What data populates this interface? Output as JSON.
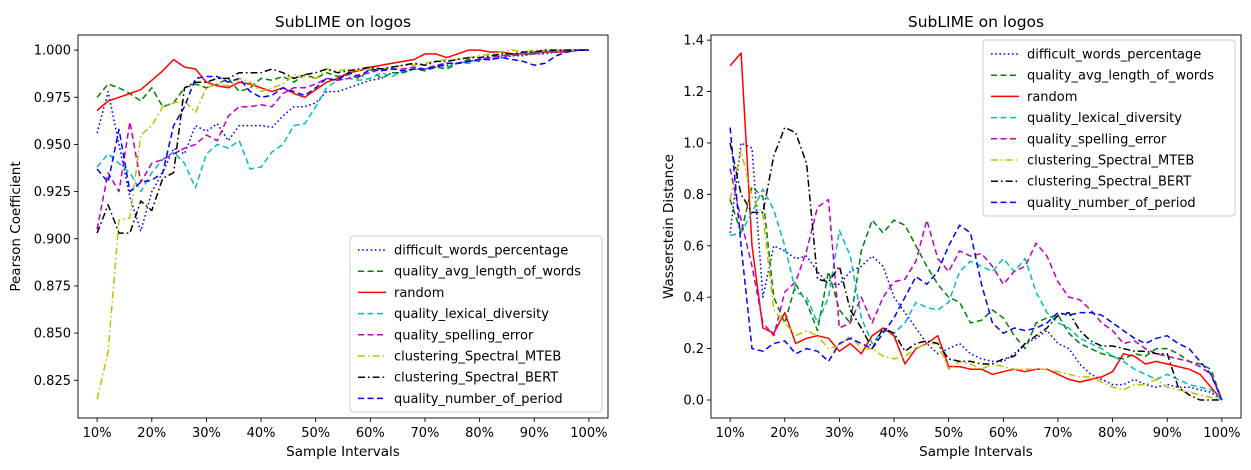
{
  "chart_data": [
    {
      "type": "line",
      "title": "SubLIME on logos",
      "xlabel": "Sample Intervals",
      "ylabel": "Pearson Coefficient",
      "x": [
        10,
        12,
        14,
        16,
        18,
        20,
        22,
        24,
        26,
        28,
        30,
        32,
        34,
        36,
        38,
        40,
        42,
        44,
        46,
        48,
        50,
        52,
        54,
        56,
        58,
        60,
        62,
        64,
        66,
        68,
        70,
        72,
        74,
        76,
        78,
        80,
        82,
        84,
        86,
        88,
        90,
        92,
        94,
        96,
        98,
        100
      ],
      "x_ticks": [
        10,
        20,
        30,
        40,
        50,
        60,
        70,
        80,
        90,
        100
      ],
      "x_tick_labels": [
        "10%",
        "20%",
        "30%",
        "40%",
        "50%",
        "60%",
        "70%",
        "80%",
        "90%",
        "100%"
      ],
      "xlim": [
        6.5,
        103.5
      ],
      "ylim": [
        0.805,
        1.008
      ],
      "y_ticks": [
        0.825,
        0.85,
        0.875,
        0.9,
        0.925,
        0.95,
        0.975,
        1.0
      ],
      "y_tick_labels": [
        "0.825",
        "0.850",
        "0.875",
        "0.900",
        "0.925",
        "0.950",
        "0.975",
        "1.000"
      ],
      "grid": false,
      "legend_position": "bottom-right",
      "series": [
        {
          "name": "difficult_words_percentage",
          "color": "#0000ff",
          "style": "dotted",
          "values": [
            0.956,
            0.978,
            0.95,
            0.922,
            0.904,
            0.925,
            0.935,
            0.948,
            0.945,
            0.96,
            0.957,
            0.961,
            0.952,
            0.96,
            0.96,
            0.96,
            0.959,
            0.965,
            0.97,
            0.97,
            0.972,
            0.978,
            0.978,
            0.98,
            0.982,
            0.984,
            0.985,
            0.988,
            0.988,
            0.99,
            0.99,
            0.991,
            0.992,
            0.993,
            0.994,
            0.995,
            0.995,
            0.996,
            0.997,
            0.997,
            0.998,
            0.998,
            0.999,
            0.999,
            1.0,
            1.0
          ]
        },
        {
          "name": "quality_avg_length_of_words",
          "color": "#008000",
          "style": "dashed",
          "values": [
            0.975,
            0.982,
            0.98,
            0.977,
            0.973,
            0.98,
            0.97,
            0.972,
            0.98,
            0.982,
            0.98,
            0.982,
            0.985,
            0.978,
            0.98,
            0.985,
            0.984,
            0.986,
            0.983,
            0.987,
            0.985,
            0.988,
            0.986,
            0.987,
            0.985,
            0.99,
            0.985,
            0.988,
            0.988,
            0.99,
            0.989,
            0.991,
            0.99,
            0.993,
            0.995,
            0.994,
            0.997,
            0.997,
            0.998,
            0.998,
            0.999,
            0.999,
            1.0,
            1.0,
            1.0,
            1.0
          ]
        },
        {
          "name": "random",
          "color": "#ff0000",
          "style": "solid",
          "values": [
            0.968,
            0.973,
            0.975,
            0.977,
            0.979,
            0.984,
            0.989,
            0.995,
            0.991,
            0.99,
            0.983,
            0.981,
            0.98,
            0.983,
            0.982,
            0.98,
            0.978,
            0.98,
            0.977,
            0.975,
            0.979,
            0.983,
            0.985,
            0.988,
            0.989,
            0.991,
            0.992,
            0.993,
            0.994,
            0.995,
            0.998,
            0.998,
            0.996,
            0.998,
            1.0,
            1.0,
            0.999,
            0.999,
            0.998,
            0.998,
            0.998,
            0.999,
            0.999,
            0.999,
            1.0,
            1.0
          ]
        },
        {
          "name": "quality_lexical_diversity",
          "color": "#00bfbf",
          "style": "dashed",
          "values": [
            0.938,
            0.945,
            0.94,
            0.935,
            0.925,
            0.935,
            0.942,
            0.946,
            0.94,
            0.927,
            0.945,
            0.95,
            0.948,
            0.952,
            0.937,
            0.938,
            0.946,
            0.95,
            0.96,
            0.961,
            0.97,
            0.98,
            0.984,
            0.985,
            0.984,
            0.985,
            0.988,
            0.986,
            0.989,
            0.99,
            0.99,
            0.992,
            0.991,
            0.993,
            0.993,
            0.995,
            0.996,
            0.997,
            0.997,
            0.998,
            0.998,
            0.999,
            0.999,
            1.0,
            1.0,
            1.0
          ]
        },
        {
          "name": "quality_spelling_error",
          "color": "#bf00bf",
          "style": "dashed",
          "values": [
            0.905,
            0.935,
            0.925,
            0.962,
            0.93,
            0.94,
            0.942,
            0.945,
            0.948,
            0.95,
            0.955,
            0.952,
            0.965,
            0.97,
            0.97,
            0.971,
            0.97,
            0.977,
            0.98,
            0.98,
            0.982,
            0.985,
            0.984,
            0.985,
            0.987,
            0.988,
            0.99,
            0.99,
            0.99,
            0.991,
            0.99,
            0.992,
            0.993,
            0.993,
            0.994,
            0.995,
            0.996,
            0.997,
            0.997,
            0.998,
            0.998,
            0.999,
            0.999,
            1.0,
            1.0,
            1.0
          ]
        },
        {
          "name": "clustering_Spectral_MTEB",
          "color": "#bfbf00",
          "style": "dashdot",
          "values": [
            0.815,
            0.84,
            0.91,
            0.911,
            0.955,
            0.96,
            0.97,
            0.972,
            0.973,
            0.967,
            0.98,
            0.982,
            0.981,
            0.985,
            0.983,
            0.978,
            0.98,
            0.982,
            0.987,
            0.986,
            0.985,
            0.99,
            0.989,
            0.99,
            0.989,
            0.99,
            0.99,
            0.991,
            0.992,
            0.992,
            0.993,
            0.994,
            0.995,
            0.995,
            0.996,
            0.997,
            0.998,
            0.999,
            1.0,
            0.999,
            1.0,
            1.0,
            1.0,
            1.0,
            1.0,
            1.0
          ]
        },
        {
          "name": "clustering_Spectral_BERT",
          "color": "#000000",
          "style": "dashdot",
          "values": [
            0.903,
            0.918,
            0.903,
            0.903,
            0.92,
            0.915,
            0.932,
            0.935,
            0.98,
            0.983,
            0.983,
            0.985,
            0.985,
            0.988,
            0.988,
            0.988,
            0.99,
            0.988,
            0.985,
            0.987,
            0.988,
            0.99,
            0.988,
            0.989,
            0.99,
            0.991,
            0.99,
            0.991,
            0.992,
            0.993,
            0.992,
            0.994,
            0.994,
            0.995,
            0.996,
            0.996,
            0.997,
            0.998,
            0.998,
            0.999,
            0.999,
            1.0,
            1.0,
            1.0,
            1.0,
            1.0
          ]
        },
        {
          "name": "quality_number_of_period",
          "color": "#0000ff",
          "style": "dashed",
          "values": [
            0.937,
            0.93,
            0.958,
            0.925,
            0.93,
            0.931,
            0.935,
            0.96,
            0.97,
            0.985,
            0.986,
            0.986,
            0.983,
            0.985,
            0.978,
            0.975,
            0.976,
            0.98,
            0.978,
            0.976,
            0.98,
            0.985,
            0.984,
            0.988,
            0.986,
            0.99,
            0.989,
            0.99,
            0.989,
            0.99,
            0.99,
            0.991,
            0.993,
            0.993,
            0.994,
            0.995,
            0.995,
            0.996,
            0.995,
            0.994,
            0.992,
            0.993,
            0.997,
            0.999,
            1.0,
            1.0
          ]
        }
      ]
    },
    {
      "type": "line",
      "title": "SubLIME on logos",
      "xlabel": "Sample Intervals",
      "ylabel": "Wasserstein Distance",
      "x": [
        10,
        12,
        14,
        16,
        18,
        20,
        22,
        24,
        26,
        28,
        30,
        32,
        34,
        36,
        38,
        40,
        42,
        44,
        46,
        48,
        50,
        52,
        54,
        56,
        58,
        60,
        62,
        64,
        66,
        68,
        70,
        72,
        74,
        76,
        78,
        80,
        82,
        84,
        86,
        88,
        90,
        92,
        94,
        96,
        98,
        100
      ],
      "x_ticks": [
        10,
        20,
        30,
        40,
        50,
        60,
        70,
        80,
        90,
        100
      ],
      "x_tick_labels": [
        "10%",
        "20%",
        "30%",
        "40%",
        "50%",
        "60%",
        "70%",
        "80%",
        "90%",
        "100%"
      ],
      "xlim": [
        6.5,
        103.5
      ],
      "ylim": [
        -0.07,
        1.42
      ],
      "y_ticks": [
        0.0,
        0.2,
        0.4,
        0.6,
        0.8,
        1.0,
        1.2,
        1.4
      ],
      "y_tick_labels": [
        "0.0",
        "0.2",
        "0.4",
        "0.6",
        "0.8",
        "1.0",
        "1.2",
        "1.4"
      ],
      "grid": false,
      "legend_position": "top-right",
      "series": [
        {
          "name": "difficult_words_percentage",
          "color": "#0000ff",
          "style": "dotted",
          "values": [
            0.65,
            1.0,
            0.98,
            0.4,
            0.6,
            0.58,
            0.55,
            0.56,
            0.5,
            0.45,
            0.45,
            0.5,
            0.52,
            0.56,
            0.52,
            0.4,
            0.34,
            0.28,
            0.22,
            0.18,
            0.2,
            0.22,
            0.18,
            0.16,
            0.15,
            0.15,
            0.18,
            0.22,
            0.24,
            0.27,
            0.22,
            0.2,
            0.14,
            0.1,
            0.08,
            0.06,
            0.06,
            0.08,
            0.06,
            0.05,
            0.06,
            0.05,
            0.05,
            0.04,
            0.03,
            0.0
          ]
        },
        {
          "name": "quality_avg_length_of_words",
          "color": "#008000",
          "style": "dashed",
          "values": [
            0.78,
            0.65,
            0.83,
            0.79,
            0.4,
            0.3,
            0.45,
            0.38,
            0.27,
            0.5,
            0.35,
            0.3,
            0.58,
            0.7,
            0.65,
            0.7,
            0.68,
            0.6,
            0.52,
            0.45,
            0.4,
            0.38,
            0.3,
            0.31,
            0.35,
            0.32,
            0.25,
            0.2,
            0.3,
            0.32,
            0.33,
            0.26,
            0.22,
            0.2,
            0.18,
            0.17,
            0.16,
            0.18,
            0.17,
            0.2,
            0.2,
            0.18,
            0.15,
            0.14,
            0.12,
            0.0
          ]
        },
        {
          "name": "random",
          "color": "#ff0000",
          "style": "solid",
          "values": [
            1.3,
            1.35,
            0.6,
            0.28,
            0.26,
            0.34,
            0.22,
            0.24,
            0.25,
            0.24,
            0.19,
            0.22,
            0.18,
            0.25,
            0.28,
            0.25,
            0.14,
            0.2,
            0.22,
            0.25,
            0.13,
            0.13,
            0.12,
            0.12,
            0.1,
            0.11,
            0.12,
            0.11,
            0.12,
            0.12,
            0.1,
            0.08,
            0.07,
            0.08,
            0.09,
            0.11,
            0.18,
            0.17,
            0.14,
            0.15,
            0.14,
            0.13,
            0.12,
            0.1,
            0.05,
            0.0
          ]
        },
        {
          "name": "quality_lexical_diversity",
          "color": "#00bfbf",
          "style": "dashed",
          "values": [
            0.64,
            0.65,
            0.73,
            0.82,
            0.74,
            0.6,
            0.42,
            0.4,
            0.3,
            0.4,
            0.66,
            0.56,
            0.32,
            0.22,
            0.27,
            0.26,
            0.3,
            0.38,
            0.36,
            0.35,
            0.38,
            0.5,
            0.54,
            0.52,
            0.5,
            0.55,
            0.5,
            0.55,
            0.42,
            0.34,
            0.3,
            0.28,
            0.24,
            0.22,
            0.2,
            0.17,
            0.15,
            0.12,
            0.1,
            0.08,
            0.1,
            0.08,
            0.06,
            0.05,
            0.04,
            0.0
          ]
        },
        {
          "name": "quality_spelling_error",
          "color": "#bf00bf",
          "style": "dashed",
          "values": [
            0.9,
            0.7,
            0.52,
            0.3,
            0.25,
            0.42,
            0.46,
            0.58,
            0.75,
            0.78,
            0.28,
            0.3,
            0.4,
            0.3,
            0.4,
            0.46,
            0.47,
            0.54,
            0.7,
            0.55,
            0.5,
            0.58,
            0.56,
            0.57,
            0.52,
            0.45,
            0.5,
            0.52,
            0.61,
            0.56,
            0.46,
            0.4,
            0.39,
            0.35,
            0.3,
            0.27,
            0.22,
            0.23,
            0.2,
            0.18,
            0.17,
            0.16,
            0.15,
            0.13,
            0.1,
            0.0
          ]
        },
        {
          "name": "clustering_Spectral_MTEB",
          "color": "#bfbf00",
          "style": "dashdot",
          "values": [
            0.78,
            0.97,
            0.79,
            0.72,
            0.35,
            0.3,
            0.25,
            0.27,
            0.25,
            0.2,
            0.21,
            0.25,
            0.2,
            0.2,
            0.17,
            0.16,
            0.17,
            0.2,
            0.22,
            0.22,
            0.12,
            0.15,
            0.14,
            0.12,
            0.14,
            0.13,
            0.12,
            0.12,
            0.12,
            0.12,
            0.11,
            0.1,
            0.09,
            0.09,
            0.07,
            0.05,
            0.04,
            0.06,
            0.06,
            0.08,
            0.05,
            0.04,
            0.03,
            0.02,
            0.01,
            0.0
          ]
        },
        {
          "name": "clustering_Spectral_BERT",
          "color": "#000000",
          "style": "dashdot",
          "values": [
            1.0,
            0.8,
            0.73,
            0.73,
            0.95,
            1.06,
            1.04,
            0.92,
            0.47,
            0.46,
            0.52,
            0.35,
            0.28,
            0.2,
            0.28,
            0.26,
            0.19,
            0.22,
            0.23,
            0.22,
            0.16,
            0.15,
            0.15,
            0.14,
            0.14,
            0.16,
            0.17,
            0.22,
            0.25,
            0.28,
            0.33,
            0.34,
            0.27,
            0.23,
            0.21,
            0.21,
            0.2,
            0.19,
            0.19,
            0.18,
            0.18,
            0.05,
            0.02,
            0.0,
            0.0,
            0.0
          ]
        },
        {
          "name": "quality_number_of_period",
          "color": "#0000ff",
          "style": "dashed",
          "values": [
            1.06,
            0.6,
            0.2,
            0.19,
            0.22,
            0.23,
            0.18,
            0.2,
            0.19,
            0.15,
            0.22,
            0.24,
            0.22,
            0.2,
            0.26,
            0.32,
            0.4,
            0.48,
            0.45,
            0.5,
            0.6,
            0.68,
            0.65,
            0.45,
            0.3,
            0.26,
            0.28,
            0.27,
            0.28,
            0.3,
            0.34,
            0.33,
            0.34,
            0.34,
            0.33,
            0.3,
            0.27,
            0.24,
            0.22,
            0.24,
            0.25,
            0.22,
            0.2,
            0.15,
            0.1,
            0.0
          ]
        }
      ]
    }
  ]
}
